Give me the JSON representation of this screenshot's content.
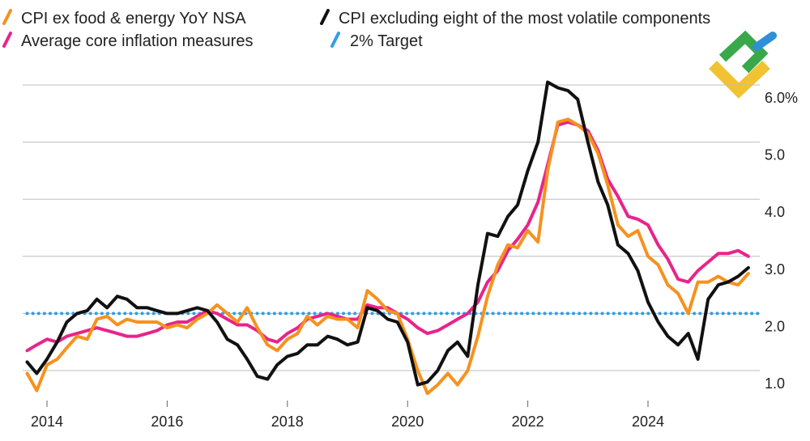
{
  "chart_data": {
    "type": "line",
    "title": "",
    "xlabel": "",
    "ylabel": "",
    "xlim": [
      2013.55,
      2025.9
    ],
    "ylim": [
      0.4,
      6.0
    ],
    "x_ticks": [
      {
        "value": 2014,
        "label": "2014"
      },
      {
        "value": 2016,
        "label": "2016"
      },
      {
        "value": 2018,
        "label": "2018"
      },
      {
        "value": 2020,
        "label": "2020"
      },
      {
        "value": 2022,
        "label": "2022"
      },
      {
        "value": 2024,
        "label": "2024"
      }
    ],
    "y_ticks": [
      {
        "value": 1.0,
        "label": "1.0"
      },
      {
        "value": 2.0,
        "label": "2.0"
      },
      {
        "value": 3.0,
        "label": "3.0"
      },
      {
        "value": 4.0,
        "label": "4.0"
      },
      {
        "value": 5.0,
        "label": "5.0"
      },
      {
        "value": 6.0,
        "label": "6.0%"
      }
    ],
    "legend": "top-left",
    "series": [
      {
        "name": "CPI ex food & energy YoY NSA",
        "color": "#f5921e",
        "style": "solid",
        "points": [
          [
            2013.67,
            0.95
          ],
          [
            2013.83,
            0.65
          ],
          [
            2014.0,
            1.1
          ],
          [
            2014.17,
            1.2
          ],
          [
            2014.33,
            1.4
          ],
          [
            2014.5,
            1.6
          ],
          [
            2014.67,
            1.55
          ],
          [
            2014.83,
            1.9
          ],
          [
            2015.0,
            1.95
          ],
          [
            2015.17,
            1.8
          ],
          [
            2015.33,
            1.9
          ],
          [
            2015.5,
            1.85
          ],
          [
            2015.67,
            1.85
          ],
          [
            2015.83,
            1.85
          ],
          [
            2016.0,
            1.75
          ],
          [
            2016.17,
            1.8
          ],
          [
            2016.33,
            1.75
          ],
          [
            2016.5,
            1.9
          ],
          [
            2016.67,
            2.0
          ],
          [
            2016.83,
            2.15
          ],
          [
            2017.0,
            2.0
          ],
          [
            2017.17,
            1.85
          ],
          [
            2017.33,
            2.1
          ],
          [
            2017.5,
            1.75
          ],
          [
            2017.67,
            1.45
          ],
          [
            2017.83,
            1.35
          ],
          [
            2018.0,
            1.55
          ],
          [
            2018.17,
            1.65
          ],
          [
            2018.33,
            1.95
          ],
          [
            2018.5,
            1.8
          ],
          [
            2018.67,
            1.95
          ],
          [
            2018.83,
            1.9
          ],
          [
            2019.0,
            1.9
          ],
          [
            2019.17,
            1.75
          ],
          [
            2019.33,
            2.4
          ],
          [
            2019.5,
            2.25
          ],
          [
            2019.67,
            2.05
          ],
          [
            2019.83,
            2.0
          ],
          [
            2020.0,
            1.55
          ],
          [
            2020.17,
            1.0
          ],
          [
            2020.33,
            0.6
          ],
          [
            2020.5,
            0.75
          ],
          [
            2020.67,
            0.95
          ],
          [
            2020.83,
            0.75
          ],
          [
            2021.0,
            1.0
          ],
          [
            2021.17,
            1.6
          ],
          [
            2021.33,
            2.3
          ],
          [
            2021.5,
            2.85
          ],
          [
            2021.67,
            3.2
          ],
          [
            2021.83,
            3.15
          ],
          [
            2022.0,
            3.45
          ],
          [
            2022.17,
            3.25
          ],
          [
            2022.33,
            4.5
          ],
          [
            2022.5,
            5.35
          ],
          [
            2022.67,
            5.4
          ],
          [
            2022.83,
            5.3
          ],
          [
            2023.0,
            5.15
          ],
          [
            2023.17,
            4.8
          ],
          [
            2023.33,
            4.25
          ],
          [
            2023.5,
            3.55
          ],
          [
            2023.67,
            3.35
          ],
          [
            2023.83,
            3.45
          ],
          [
            2024.0,
            3.0
          ],
          [
            2024.17,
            2.85
          ],
          [
            2024.33,
            2.5
          ],
          [
            2024.5,
            2.35
          ],
          [
            2024.67,
            2.0
          ],
          [
            2024.83,
            2.55
          ],
          [
            2025.0,
            2.55
          ],
          [
            2025.17,
            2.65
          ],
          [
            2025.33,
            2.55
          ],
          [
            2025.5,
            2.5
          ],
          [
            2025.67,
            2.7
          ]
        ]
      },
      {
        "name": "CPI excluding eight of the most volatile components",
        "color": "#111111",
        "style": "solid",
        "points": [
          [
            2013.67,
            1.15
          ],
          [
            2013.83,
            0.95
          ],
          [
            2014.0,
            1.2
          ],
          [
            2014.17,
            1.5
          ],
          [
            2014.33,
            1.85
          ],
          [
            2014.5,
            2.0
          ],
          [
            2014.67,
            2.05
          ],
          [
            2014.83,
            2.25
          ],
          [
            2015.0,
            2.1
          ],
          [
            2015.17,
            2.3
          ],
          [
            2015.33,
            2.25
          ],
          [
            2015.5,
            2.1
          ],
          [
            2015.67,
            2.1
          ],
          [
            2015.83,
            2.05
          ],
          [
            2016.0,
            2.0
          ],
          [
            2016.17,
            2.0
          ],
          [
            2016.33,
            2.05
          ],
          [
            2016.5,
            2.1
          ],
          [
            2016.67,
            2.05
          ],
          [
            2016.83,
            1.85
          ],
          [
            2017.0,
            1.55
          ],
          [
            2017.17,
            1.45
          ],
          [
            2017.33,
            1.2
          ],
          [
            2017.5,
            0.9
          ],
          [
            2017.67,
            0.85
          ],
          [
            2017.83,
            1.1
          ],
          [
            2018.0,
            1.25
          ],
          [
            2018.17,
            1.3
          ],
          [
            2018.33,
            1.45
          ],
          [
            2018.5,
            1.45
          ],
          [
            2018.67,
            1.6
          ],
          [
            2018.83,
            1.55
          ],
          [
            2019.0,
            1.45
          ],
          [
            2019.17,
            1.5
          ],
          [
            2019.33,
            2.1
          ],
          [
            2019.5,
            2.05
          ],
          [
            2019.67,
            1.9
          ],
          [
            2019.83,
            1.85
          ],
          [
            2020.0,
            1.5
          ],
          [
            2020.17,
            0.75
          ],
          [
            2020.33,
            0.8
          ],
          [
            2020.5,
            1.0
          ],
          [
            2020.67,
            1.35
          ],
          [
            2020.83,
            1.5
          ],
          [
            2021.0,
            1.25
          ],
          [
            2021.17,
            2.5
          ],
          [
            2021.33,
            3.4
          ],
          [
            2021.5,
            3.35
          ],
          [
            2021.67,
            3.7
          ],
          [
            2021.83,
            3.9
          ],
          [
            2022.0,
            4.5
          ],
          [
            2022.17,
            5.0
          ],
          [
            2022.33,
            6.05
          ],
          [
            2022.5,
            5.95
          ],
          [
            2022.67,
            5.9
          ],
          [
            2022.83,
            5.75
          ],
          [
            2023.0,
            5.0
          ],
          [
            2023.17,
            4.3
          ],
          [
            2023.33,
            3.9
          ],
          [
            2023.5,
            3.2
          ],
          [
            2023.67,
            3.05
          ],
          [
            2023.83,
            2.75
          ],
          [
            2024.0,
            2.2
          ],
          [
            2024.17,
            1.85
          ],
          [
            2024.33,
            1.6
          ],
          [
            2024.5,
            1.45
          ],
          [
            2024.67,
            1.65
          ],
          [
            2024.83,
            1.2
          ],
          [
            2025.0,
            2.25
          ],
          [
            2025.17,
            2.5
          ],
          [
            2025.33,
            2.55
          ],
          [
            2025.5,
            2.65
          ],
          [
            2025.67,
            2.8
          ]
        ]
      },
      {
        "name": "Average core inflation measures",
        "color": "#e8248a",
        "style": "solid",
        "points": [
          [
            2013.67,
            1.35
          ],
          [
            2013.83,
            1.45
          ],
          [
            2014.0,
            1.55
          ],
          [
            2014.17,
            1.5
          ],
          [
            2014.33,
            1.6
          ],
          [
            2014.5,
            1.65
          ],
          [
            2014.67,
            1.7
          ],
          [
            2014.83,
            1.75
          ],
          [
            2015.0,
            1.7
          ],
          [
            2015.17,
            1.65
          ],
          [
            2015.33,
            1.6
          ],
          [
            2015.5,
            1.6
          ],
          [
            2015.67,
            1.65
          ],
          [
            2015.83,
            1.7
          ],
          [
            2016.0,
            1.8
          ],
          [
            2016.17,
            1.85
          ],
          [
            2016.33,
            1.85
          ],
          [
            2016.5,
            1.95
          ],
          [
            2016.67,
            2.05
          ],
          [
            2016.83,
            2.0
          ],
          [
            2017.0,
            1.9
          ],
          [
            2017.17,
            1.8
          ],
          [
            2017.33,
            1.8
          ],
          [
            2017.5,
            1.7
          ],
          [
            2017.67,
            1.55
          ],
          [
            2017.83,
            1.5
          ],
          [
            2018.0,
            1.65
          ],
          [
            2018.17,
            1.75
          ],
          [
            2018.33,
            1.9
          ],
          [
            2018.5,
            1.95
          ],
          [
            2018.67,
            2.0
          ],
          [
            2018.83,
            1.95
          ],
          [
            2019.0,
            1.9
          ],
          [
            2019.17,
            1.9
          ],
          [
            2019.33,
            2.15
          ],
          [
            2019.5,
            2.1
          ],
          [
            2019.67,
            2.1
          ],
          [
            2019.83,
            2.0
          ],
          [
            2020.0,
            1.9
          ],
          [
            2020.17,
            1.75
          ],
          [
            2020.33,
            1.65
          ],
          [
            2020.5,
            1.7
          ],
          [
            2020.67,
            1.8
          ],
          [
            2020.83,
            1.9
          ],
          [
            2021.0,
            2.0
          ],
          [
            2021.17,
            2.2
          ],
          [
            2021.33,
            2.55
          ],
          [
            2021.5,
            2.75
          ],
          [
            2021.67,
            3.1
          ],
          [
            2021.83,
            3.3
          ],
          [
            2022.0,
            3.55
          ],
          [
            2022.17,
            3.95
          ],
          [
            2022.33,
            4.6
          ],
          [
            2022.5,
            5.3
          ],
          [
            2022.67,
            5.35
          ],
          [
            2022.83,
            5.3
          ],
          [
            2023.0,
            5.2
          ],
          [
            2023.17,
            4.85
          ],
          [
            2023.33,
            4.35
          ],
          [
            2023.5,
            4.05
          ],
          [
            2023.67,
            3.7
          ],
          [
            2023.83,
            3.65
          ],
          [
            2024.0,
            3.55
          ],
          [
            2024.17,
            3.2
          ],
          [
            2024.33,
            2.95
          ],
          [
            2024.5,
            2.6
          ],
          [
            2024.67,
            2.55
          ],
          [
            2024.83,
            2.75
          ],
          [
            2025.0,
            2.9
          ],
          [
            2025.17,
            3.05
          ],
          [
            2025.33,
            3.05
          ],
          [
            2025.5,
            3.1
          ],
          [
            2025.67,
            3.0
          ]
        ]
      },
      {
        "name": "2% Target",
        "color": "#2e9fea",
        "style": "dotted",
        "points": [
          [
            2013.67,
            2.0
          ],
          [
            2025.9,
            2.0
          ]
        ]
      }
    ]
  },
  "legend": {
    "items": [
      {
        "label": "CPI ex food & energy YoY NSA",
        "color": "#f5921e"
      },
      {
        "label": "CPI excluding eight of the most volatile components",
        "color": "#111111"
      },
      {
        "label": "Average core inflation measures",
        "color": "#e8248a"
      },
      {
        "label": "2% Target",
        "color": "#2e9fea"
      }
    ]
  },
  "logo": {
    "name": "brand-logo-icon",
    "colors": [
      "#f1c232",
      "#38a84a",
      "#2f8fd8"
    ]
  }
}
